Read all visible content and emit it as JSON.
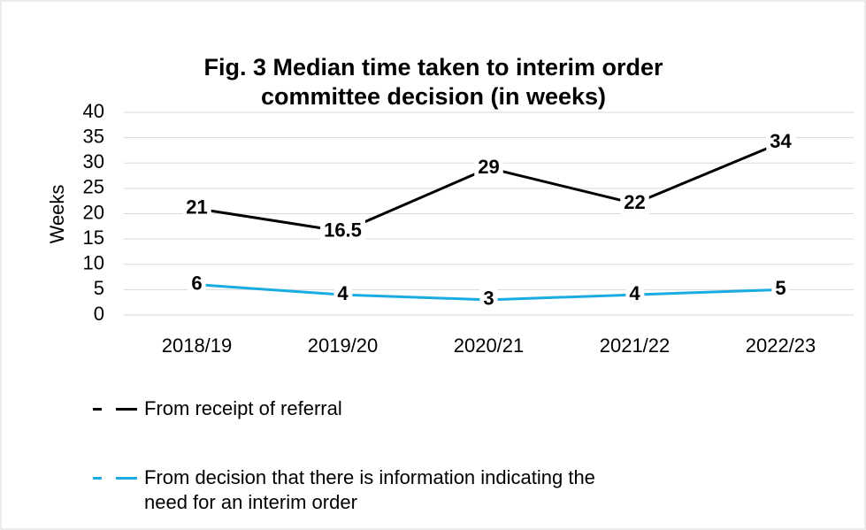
{
  "chart_data": {
    "type": "line",
    "title": "Fig. 3 Median time taken to interim order committee decision (in weeks)",
    "y_label": "Weeks",
    "categories": [
      "2018/19",
      "2019/20",
      "2020/21",
      "2021/22",
      "2022/23"
    ],
    "series": [
      {
        "name": "From receipt of referral",
        "color": "#000000",
        "values": [
          21,
          16.5,
          29,
          22,
          34
        ]
      },
      {
        "name": "From decision that there is information indicating the need for an interim order",
        "color": "#1aabe2",
        "values": [
          6,
          4,
          3,
          4,
          5
        ]
      }
    ],
    "ylim": [
      0,
      40
    ],
    "yticks": [
      0,
      5,
      10,
      15,
      20,
      25,
      30,
      35,
      40
    ],
    "grid": true,
    "legend": "bottom"
  }
}
